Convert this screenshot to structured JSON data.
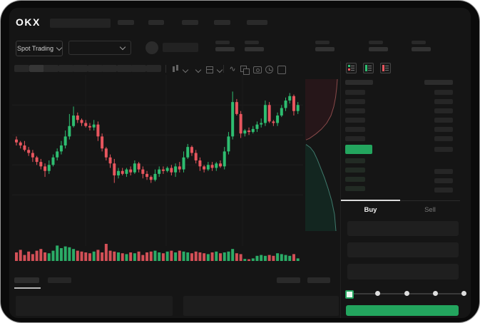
{
  "top_nav": {
    "logo": "OKX",
    "menu_placeholder_count": 5
  },
  "market_bar": {
    "market_selector_label": "Spot Trading",
    "pair_dropdown_value": "",
    "stat_placeholder_count": 5
  },
  "chart_toolbar": {
    "interval_placeholder_count": 10,
    "icons": [
      "candlestick-style-icon",
      "chevron-down-icon",
      "chevron-down-icon",
      "indicators-icon",
      "chevron-down-icon",
      "line-overlay-icon",
      "compare-icon",
      "camera-icon",
      "history-icon",
      "fullscreen-icon"
    ]
  },
  "order_book": {
    "view_icons": [
      "book-both-icon",
      "book-bids-icon",
      "book-asks-icon"
    ],
    "ask_rows": 6,
    "bid_rows": 4,
    "right_column_lower_rows": 3
  },
  "order_form": {
    "buy_tab_label": "Buy",
    "sell_tab_label": "Sell",
    "active_tab": "Buy",
    "input_count": 3,
    "slider": {
      "stops": 5,
      "selected_index": 0
    }
  },
  "bottom_panel": {
    "tab_placeholder_count": 2,
    "right_placeholder_count": 2,
    "table_placeholder_count": 2
  },
  "colors": {
    "up_green": "#2ebd70",
    "down_red": "#e8565e",
    "accent_green": "#23a55e",
    "bid_row_green": "#222b24",
    "app_bg": "#151515",
    "frame_bg": "#0a0a0a"
  },
  "chart_data": [
    {
      "type": "candlestick",
      "title": "",
      "note": "axis labels not visible; prices in relative units",
      "ylim": [
        30,
        100
      ],
      "gridline_levels": [
        87,
        67,
        47,
        27
      ],
      "open_first": 64,
      "closes": [
        62,
        60,
        57,
        55,
        52,
        49,
        46,
        43,
        47,
        52,
        56,
        60,
        66,
        73,
        80,
        77,
        75,
        73,
        72,
        74,
        66,
        58,
        52,
        48,
        40,
        43,
        41,
        44,
        42,
        48,
        44,
        41,
        39,
        37,
        41,
        44,
        43,
        45,
        42,
        46,
        44,
        52,
        59,
        55,
        50,
        46,
        44,
        47,
        45,
        48,
        46,
        56,
        66,
        89,
        81,
        68,
        70,
        69,
        71,
        74,
        75,
        87,
        76,
        75,
        80,
        85,
        90,
        93,
        83,
        87
      ],
      "wick_up": [
        2,
        1,
        3,
        2,
        2,
        1,
        2,
        2,
        3,
        2,
        2,
        3,
        4,
        8,
        6,
        2,
        1,
        2,
        2,
        3,
        2,
        2,
        1,
        2,
        3,
        2,
        2,
        1,
        2,
        2,
        1,
        2,
        2,
        1,
        3,
        2,
        2,
        1,
        2,
        2,
        3,
        4,
        2,
        1,
        2,
        2,
        1,
        2,
        2,
        1,
        2,
        3,
        3,
        7,
        2,
        2,
        1,
        2,
        2,
        2,
        3,
        3,
        2,
        1,
        2,
        2,
        2,
        2,
        1,
        2
      ],
      "wick_down": [
        2,
        2,
        1,
        2,
        3,
        2,
        2,
        4,
        2,
        1,
        2,
        2,
        2,
        2,
        1,
        2,
        2,
        1,
        2,
        2,
        3,
        2,
        2,
        3,
        5,
        2,
        1,
        2,
        2,
        1,
        2,
        3,
        2,
        2,
        1,
        2,
        2,
        1,
        2,
        3,
        2,
        2,
        1,
        2,
        2,
        3,
        2,
        1,
        2,
        2,
        1,
        2,
        2,
        2,
        1,
        3,
        2,
        2,
        1,
        2,
        2,
        2,
        1,
        2,
        2,
        1,
        2,
        2,
        3,
        2
      ],
      "volumes": [
        0.5,
        0.65,
        0.35,
        0.55,
        0.4,
        0.6,
        0.7,
        0.5,
        0.45,
        0.6,
        0.9,
        0.75,
        0.85,
        0.8,
        0.7,
        0.6,
        0.55,
        0.5,
        0.45,
        0.55,
        0.65,
        0.5,
        1.0,
        0.6,
        0.55,
        0.5,
        0.45,
        0.4,
        0.5,
        0.45,
        0.55,
        0.35,
        0.5,
        0.55,
        0.6,
        0.5,
        0.45,
        0.55,
        0.6,
        0.5,
        0.6,
        0.55,
        0.5,
        0.45,
        0.55,
        0.5,
        0.45,
        0.4,
        0.5,
        0.55,
        0.45,
        0.5,
        0.55,
        0.7,
        0.45,
        0.4,
        0.12,
        0.1,
        0.15,
        0.3,
        0.35,
        0.3,
        0.35,
        0.3,
        0.45,
        0.4,
        0.35,
        0.3,
        0.4,
        0.15
      ]
    },
    {
      "type": "area",
      "name": "depth",
      "orientation": "vertical",
      "ask_curve": [
        [
          0.9,
          0
        ],
        [
          0.88,
          0.06
        ],
        [
          0.85,
          0.12
        ],
        [
          0.8,
          0.18
        ],
        [
          0.72,
          0.24
        ],
        [
          0.6,
          0.29
        ],
        [
          0.45,
          0.33
        ],
        [
          0.3,
          0.36
        ],
        [
          0.12,
          0.39
        ],
        [
          0.02,
          0.4
        ]
      ],
      "bid_curve": [
        [
          0.02,
          0.43
        ],
        [
          0.14,
          0.45
        ],
        [
          0.24,
          0.48
        ],
        [
          0.34,
          0.53
        ],
        [
          0.44,
          0.59
        ],
        [
          0.54,
          0.65
        ],
        [
          0.64,
          0.72
        ],
        [
          0.74,
          0.8
        ],
        [
          0.82,
          0.89
        ],
        [
          0.86,
          1.0
        ]
      ]
    }
  ]
}
